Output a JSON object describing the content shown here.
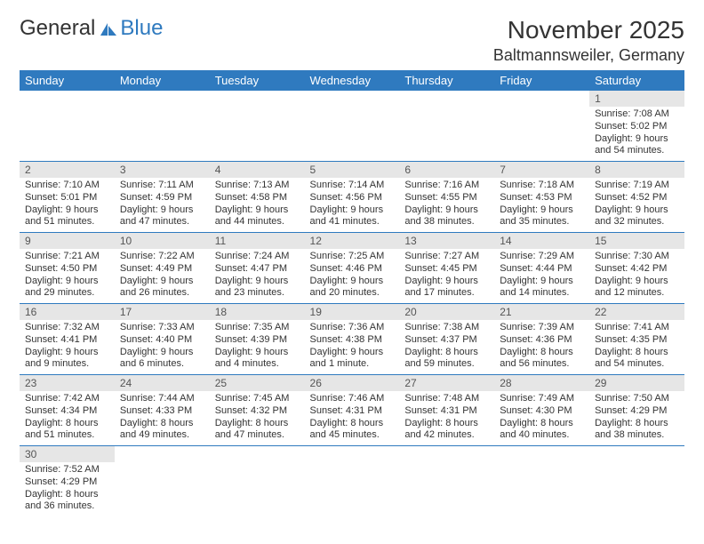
{
  "logo": {
    "text_dark": "General",
    "text_blue": "Blue"
  },
  "title": "November 2025",
  "location": "Baltmannsweiler, Germany",
  "colors": {
    "header_bg": "#2f7abf",
    "header_text": "#ffffff",
    "daynum_bg": "#e6e6e6",
    "row_border": "#2f7abf",
    "body_text": "#333333"
  },
  "weekdays": [
    "Sunday",
    "Monday",
    "Tuesday",
    "Wednesday",
    "Thursday",
    "Friday",
    "Saturday"
  ],
  "weeks": [
    [
      null,
      null,
      null,
      null,
      null,
      null,
      {
        "n": "1",
        "sr": "Sunrise: 7:08 AM",
        "ss": "Sunset: 5:02 PM",
        "dl": "Daylight: 9 hours and 54 minutes."
      }
    ],
    [
      {
        "n": "2",
        "sr": "Sunrise: 7:10 AM",
        "ss": "Sunset: 5:01 PM",
        "dl": "Daylight: 9 hours and 51 minutes."
      },
      {
        "n": "3",
        "sr": "Sunrise: 7:11 AM",
        "ss": "Sunset: 4:59 PM",
        "dl": "Daylight: 9 hours and 47 minutes."
      },
      {
        "n": "4",
        "sr": "Sunrise: 7:13 AM",
        "ss": "Sunset: 4:58 PM",
        "dl": "Daylight: 9 hours and 44 minutes."
      },
      {
        "n": "5",
        "sr": "Sunrise: 7:14 AM",
        "ss": "Sunset: 4:56 PM",
        "dl": "Daylight: 9 hours and 41 minutes."
      },
      {
        "n": "6",
        "sr": "Sunrise: 7:16 AM",
        "ss": "Sunset: 4:55 PM",
        "dl": "Daylight: 9 hours and 38 minutes."
      },
      {
        "n": "7",
        "sr": "Sunrise: 7:18 AM",
        "ss": "Sunset: 4:53 PM",
        "dl": "Daylight: 9 hours and 35 minutes."
      },
      {
        "n": "8",
        "sr": "Sunrise: 7:19 AM",
        "ss": "Sunset: 4:52 PM",
        "dl": "Daylight: 9 hours and 32 minutes."
      }
    ],
    [
      {
        "n": "9",
        "sr": "Sunrise: 7:21 AM",
        "ss": "Sunset: 4:50 PM",
        "dl": "Daylight: 9 hours and 29 minutes."
      },
      {
        "n": "10",
        "sr": "Sunrise: 7:22 AM",
        "ss": "Sunset: 4:49 PM",
        "dl": "Daylight: 9 hours and 26 minutes."
      },
      {
        "n": "11",
        "sr": "Sunrise: 7:24 AM",
        "ss": "Sunset: 4:47 PM",
        "dl": "Daylight: 9 hours and 23 minutes."
      },
      {
        "n": "12",
        "sr": "Sunrise: 7:25 AM",
        "ss": "Sunset: 4:46 PM",
        "dl": "Daylight: 9 hours and 20 minutes."
      },
      {
        "n": "13",
        "sr": "Sunrise: 7:27 AM",
        "ss": "Sunset: 4:45 PM",
        "dl": "Daylight: 9 hours and 17 minutes."
      },
      {
        "n": "14",
        "sr": "Sunrise: 7:29 AM",
        "ss": "Sunset: 4:44 PM",
        "dl": "Daylight: 9 hours and 14 minutes."
      },
      {
        "n": "15",
        "sr": "Sunrise: 7:30 AM",
        "ss": "Sunset: 4:42 PM",
        "dl": "Daylight: 9 hours and 12 minutes."
      }
    ],
    [
      {
        "n": "16",
        "sr": "Sunrise: 7:32 AM",
        "ss": "Sunset: 4:41 PM",
        "dl": "Daylight: 9 hours and 9 minutes."
      },
      {
        "n": "17",
        "sr": "Sunrise: 7:33 AM",
        "ss": "Sunset: 4:40 PM",
        "dl": "Daylight: 9 hours and 6 minutes."
      },
      {
        "n": "18",
        "sr": "Sunrise: 7:35 AM",
        "ss": "Sunset: 4:39 PM",
        "dl": "Daylight: 9 hours and 4 minutes."
      },
      {
        "n": "19",
        "sr": "Sunrise: 7:36 AM",
        "ss": "Sunset: 4:38 PM",
        "dl": "Daylight: 9 hours and 1 minute."
      },
      {
        "n": "20",
        "sr": "Sunrise: 7:38 AM",
        "ss": "Sunset: 4:37 PM",
        "dl": "Daylight: 8 hours and 59 minutes."
      },
      {
        "n": "21",
        "sr": "Sunrise: 7:39 AM",
        "ss": "Sunset: 4:36 PM",
        "dl": "Daylight: 8 hours and 56 minutes."
      },
      {
        "n": "22",
        "sr": "Sunrise: 7:41 AM",
        "ss": "Sunset: 4:35 PM",
        "dl": "Daylight: 8 hours and 54 minutes."
      }
    ],
    [
      {
        "n": "23",
        "sr": "Sunrise: 7:42 AM",
        "ss": "Sunset: 4:34 PM",
        "dl": "Daylight: 8 hours and 51 minutes."
      },
      {
        "n": "24",
        "sr": "Sunrise: 7:44 AM",
        "ss": "Sunset: 4:33 PM",
        "dl": "Daylight: 8 hours and 49 minutes."
      },
      {
        "n": "25",
        "sr": "Sunrise: 7:45 AM",
        "ss": "Sunset: 4:32 PM",
        "dl": "Daylight: 8 hours and 47 minutes."
      },
      {
        "n": "26",
        "sr": "Sunrise: 7:46 AM",
        "ss": "Sunset: 4:31 PM",
        "dl": "Daylight: 8 hours and 45 minutes."
      },
      {
        "n": "27",
        "sr": "Sunrise: 7:48 AM",
        "ss": "Sunset: 4:31 PM",
        "dl": "Daylight: 8 hours and 42 minutes."
      },
      {
        "n": "28",
        "sr": "Sunrise: 7:49 AM",
        "ss": "Sunset: 4:30 PM",
        "dl": "Daylight: 8 hours and 40 minutes."
      },
      {
        "n": "29",
        "sr": "Sunrise: 7:50 AM",
        "ss": "Sunset: 4:29 PM",
        "dl": "Daylight: 8 hours and 38 minutes."
      }
    ],
    [
      {
        "n": "30",
        "sr": "Sunrise: 7:52 AM",
        "ss": "Sunset: 4:29 PM",
        "dl": "Daylight: 8 hours and 36 minutes."
      },
      null,
      null,
      null,
      null,
      null,
      null
    ]
  ]
}
